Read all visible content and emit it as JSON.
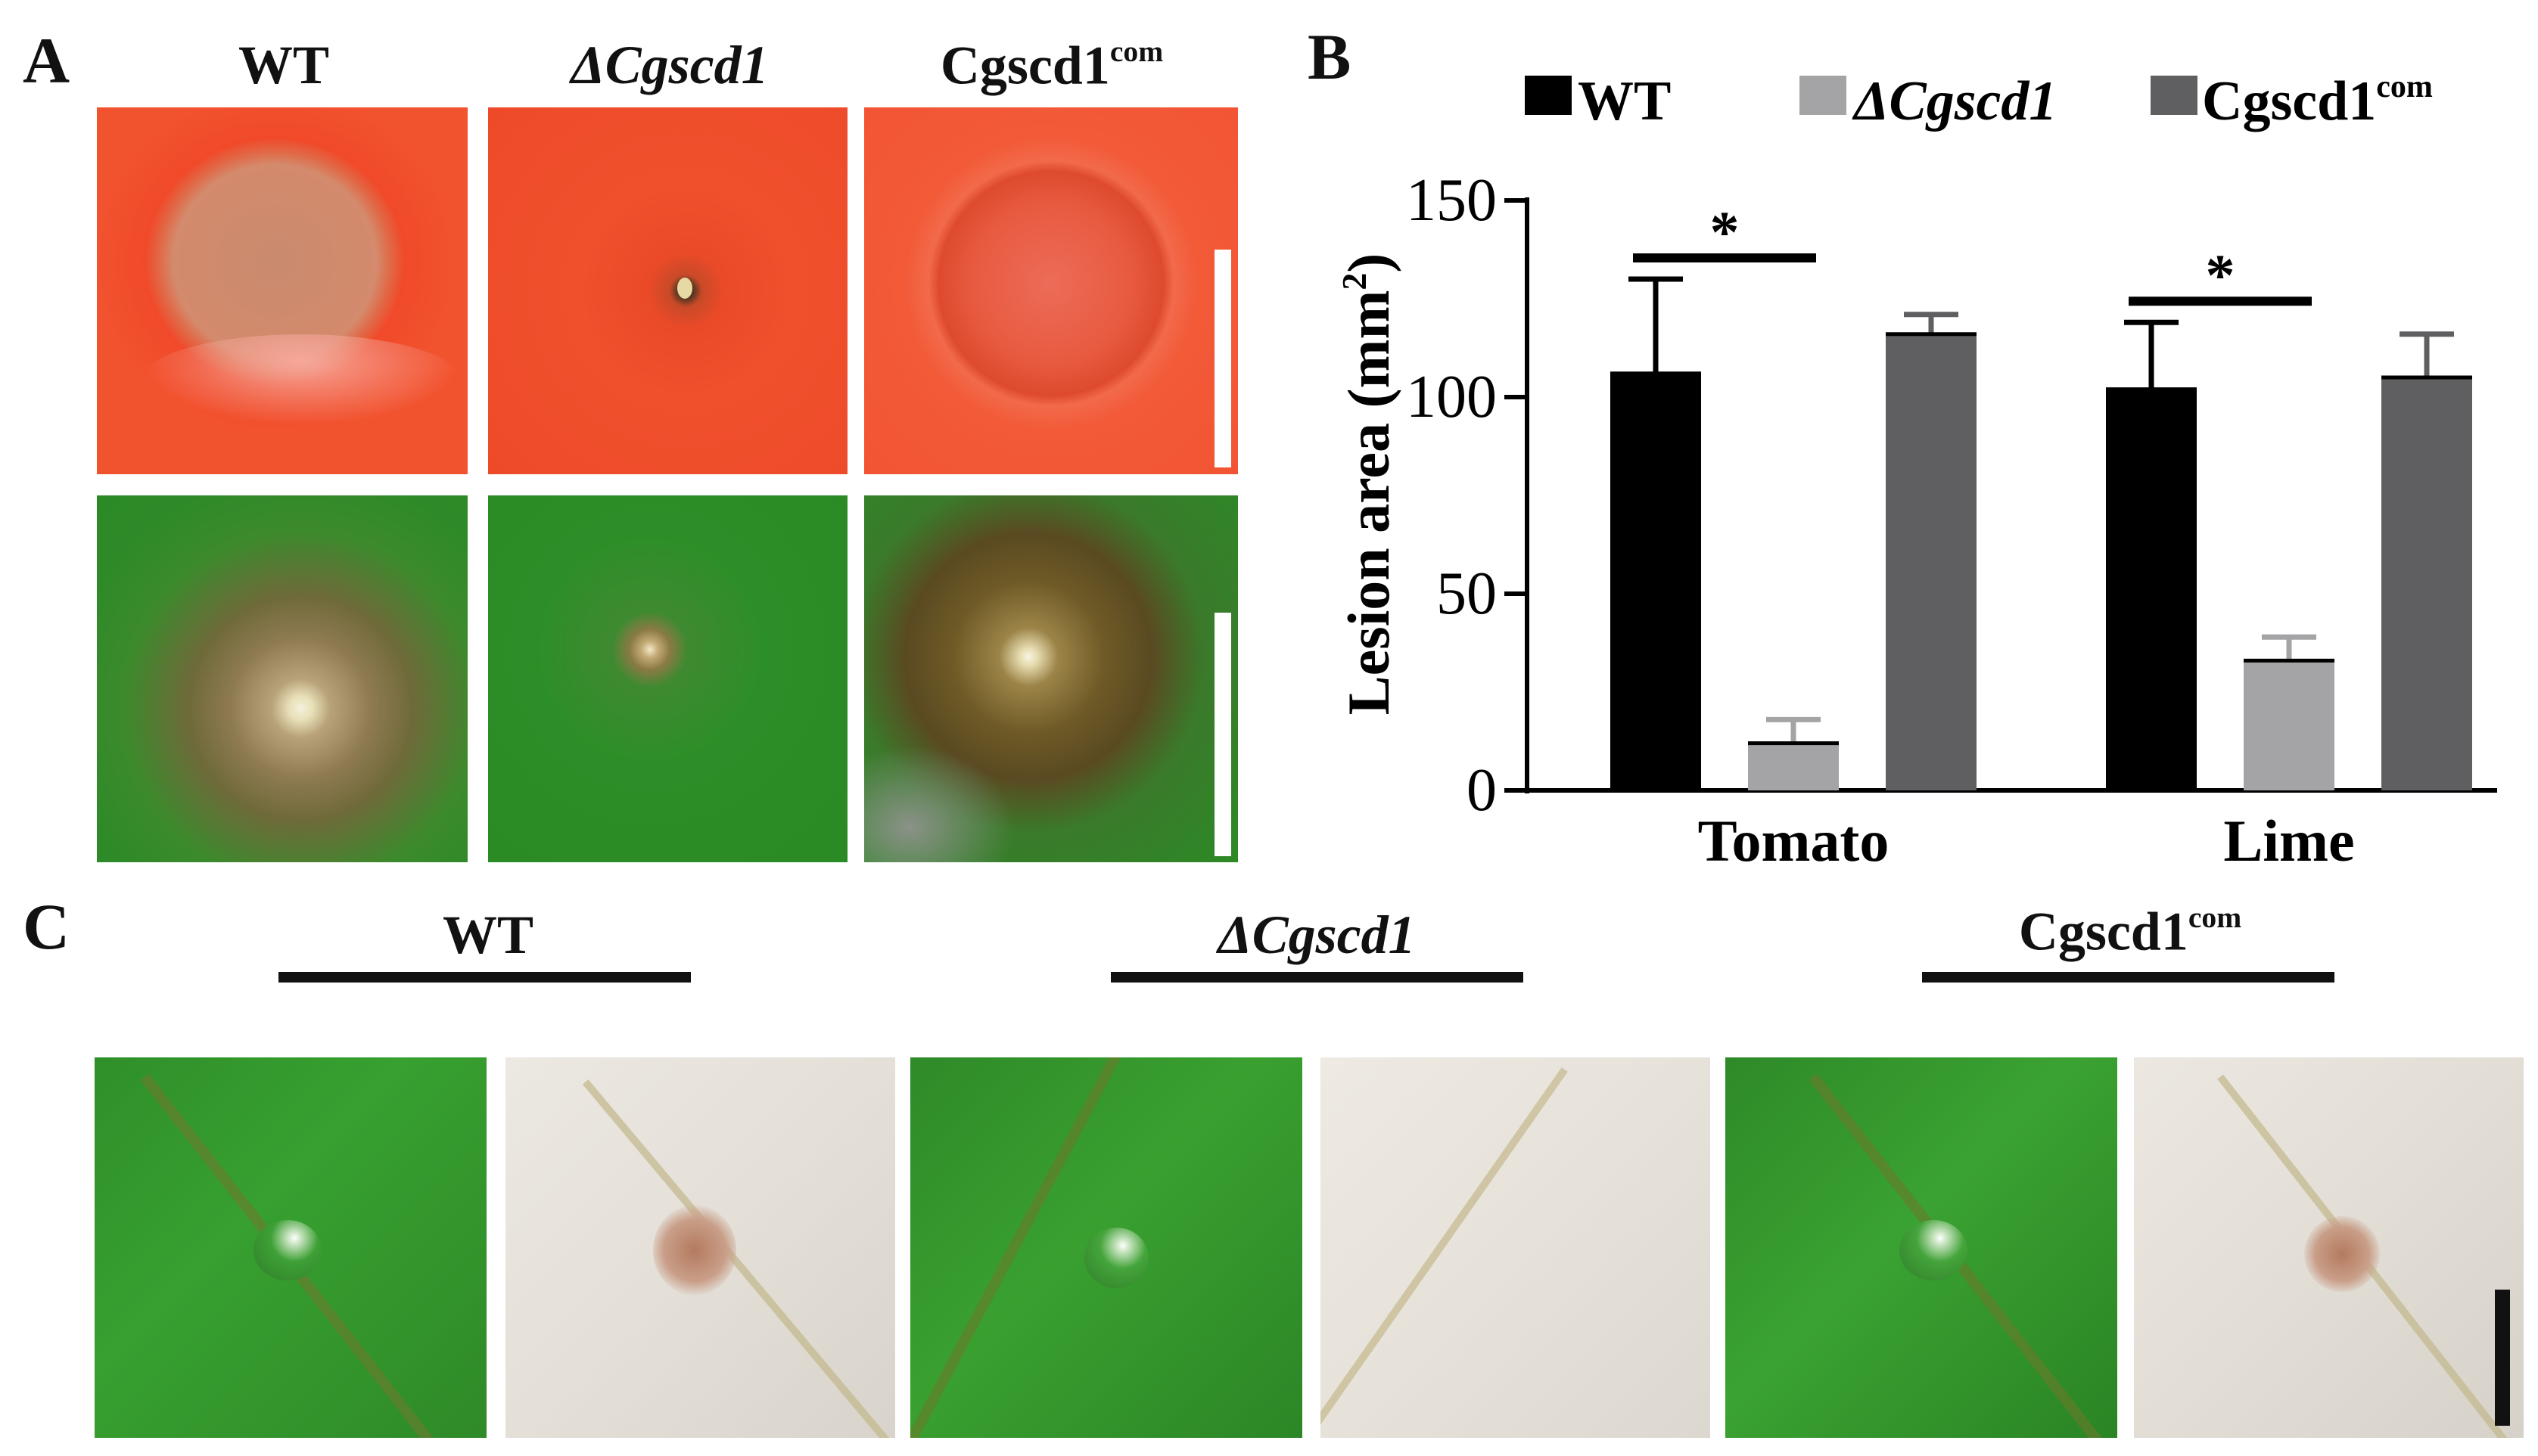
{
  "panels": {
    "A": {
      "letter": "A",
      "columns": [
        {
          "label": "WT",
          "italic": false,
          "sup": ""
        },
        {
          "label": "ΔCgscd1",
          "italic": true,
          "sup": ""
        },
        {
          "label": "Cgscd1",
          "italic": false,
          "sup": "com"
        }
      ]
    },
    "B": {
      "letter": "B"
    },
    "C": {
      "letter": "C",
      "groups": [
        {
          "label": "WT",
          "italic": false,
          "sup": ""
        },
        {
          "label": "ΔCgscd1",
          "italic": true,
          "sup": ""
        },
        {
          "label": "Cgscd1",
          "italic": false,
          "sup": "com"
        }
      ]
    }
  },
  "chart_data": {
    "type": "bar",
    "categories": [
      "Tomato",
      "Lime"
    ],
    "ylabel": "Lesion area (mm",
    "ylabel_sup": "2",
    "ylabel_close": ")",
    "ylim": [
      0,
      150
    ],
    "yticks": [
      "0",
      "50",
      "100",
      "150"
    ],
    "legend": [
      {
        "label": "WT",
        "italic": false,
        "sup": ""
      },
      {
        "label": "ΔCgscd1",
        "italic": true,
        "sup": ""
      },
      {
        "label": "Cgscd1",
        "italic": false,
        "sup": "com"
      }
    ],
    "legend_placement": "top",
    "series": [
      {
        "color": "#000000",
        "values": [
          106,
          102
        ],
        "errors": [
          24,
          17
        ]
      },
      {
        "color": "#a4a4a6",
        "values": [
          12,
          33
        ],
        "errors": [
          6,
          6
        ]
      },
      {
        "color": "#5f5f61",
        "values": [
          116,
          105
        ],
        "errors": [
          5,
          11
        ]
      }
    ],
    "significance": [
      {
        "category": "Tomato",
        "marker": "*"
      },
      {
        "category": "Lime",
        "marker": "*"
      }
    ]
  },
  "colors": {
    "tomato": "#f04a2a",
    "leaf": "#2a8f25",
    "cleared_leaf": "#e7e2db"
  }
}
